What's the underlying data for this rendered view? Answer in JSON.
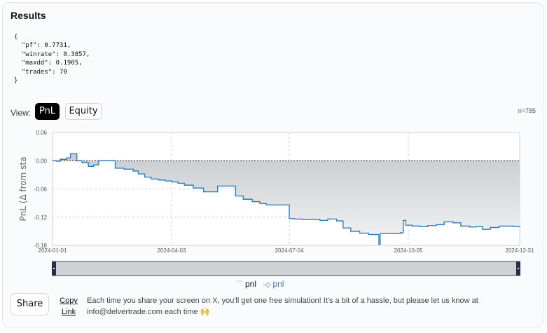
{
  "results": {
    "title": "Results",
    "json_text": "{\n  \"pf\": 0.7731,\n  \"winrate\": 0.3857,\n  \"maxdd\": 0.1905,\n  \"trades\": 70\n}"
  },
  "view": {
    "label": "View:",
    "options": [
      "PnL",
      "Equity"
    ],
    "selected": "PnL",
    "count": "n=785"
  },
  "colors": {
    "line": "#2f7ebd",
    "fill": "#d3d5d8",
    "selected_bg": "#000000"
  },
  "chart_data": {
    "type": "line",
    "ylabel": "PnL (Δ from sta",
    "yticks": [
      "0.06",
      "0.00",
      "-0.06",
      "-0.12",
      "-0.18"
    ],
    "xticks": [
      "2024-01-01",
      "2024-04-03",
      "2024-07-04",
      "2024-10-05",
      "2024-12-31"
    ],
    "ylim": [
      -0.18,
      0.06
    ],
    "grid": true,
    "legend": "bottom",
    "series": [
      {
        "name": "pnl",
        "x": [
          "2024-01-01",
          "2024-01-04",
          "2024-01-07",
          "2024-01-12",
          "2024-01-15",
          "2024-01-20",
          "2024-01-24",
          "2024-01-29",
          "2024-02-02",
          "2024-02-06",
          "2024-02-12",
          "2024-02-19",
          "2024-02-26",
          "2024-03-04",
          "2024-03-08",
          "2024-03-13",
          "2024-03-18",
          "2024-03-24",
          "2024-03-29",
          "2024-04-03",
          "2024-04-08",
          "2024-04-13",
          "2024-04-20",
          "2024-04-28",
          "2024-05-06",
          "2024-05-09",
          "2024-05-16",
          "2024-05-23",
          "2024-05-29",
          "2024-06-05",
          "2024-06-11",
          "2024-06-16",
          "2024-06-20",
          "2024-07-04",
          "2024-07-08",
          "2024-07-14",
          "2024-07-22",
          "2024-07-28",
          "2024-08-03",
          "2024-08-10",
          "2024-08-15",
          "2024-08-21",
          "2024-08-28",
          "2024-09-04",
          "2024-09-12",
          "2024-09-13",
          "2024-09-20",
          "2024-09-29",
          "2024-10-01",
          "2024-10-03",
          "2024-10-08",
          "2024-10-14",
          "2024-10-20",
          "2024-10-27",
          "2024-11-02",
          "2024-11-09",
          "2024-11-15",
          "2024-11-22",
          "2024-11-27",
          "2024-12-02",
          "2024-12-08",
          "2024-12-15",
          "2024-12-21",
          "2024-12-26",
          "2024-12-31"
        ],
        "values": [
          0.0,
          -0.001,
          0.003,
          0.006,
          0.015,
          0.0,
          -0.004,
          -0.012,
          -0.009,
          0.0,
          0.0,
          -0.016,
          -0.018,
          -0.022,
          -0.028,
          -0.035,
          -0.039,
          -0.041,
          -0.043,
          -0.045,
          -0.048,
          -0.052,
          -0.058,
          -0.066,
          -0.066,
          -0.054,
          -0.054,
          -0.075,
          -0.082,
          -0.087,
          -0.091,
          -0.094,
          -0.094,
          -0.123,
          -0.124,
          -0.125,
          -0.125,
          -0.127,
          -0.124,
          -0.128,
          -0.143,
          -0.15,
          -0.154,
          -0.157,
          -0.178,
          -0.155,
          -0.155,
          -0.153,
          -0.127,
          -0.137,
          -0.139,
          -0.14,
          -0.138,
          -0.136,
          -0.13,
          -0.132,
          -0.139,
          -0.141,
          -0.14,
          -0.146,
          -0.142,
          -0.139,
          -0.139,
          -0.14,
          -0.139
        ]
      }
    ]
  },
  "legend": {
    "items": [
      "pnl",
      "pnl"
    ]
  },
  "share": {
    "button": "Share",
    "copy_link": "Copy Link",
    "message": "Each time you share your screen on X, you'll get one free simulation! It's a bit of a hassle, but please let us know at info@delvertrade.com each time 🙌"
  }
}
